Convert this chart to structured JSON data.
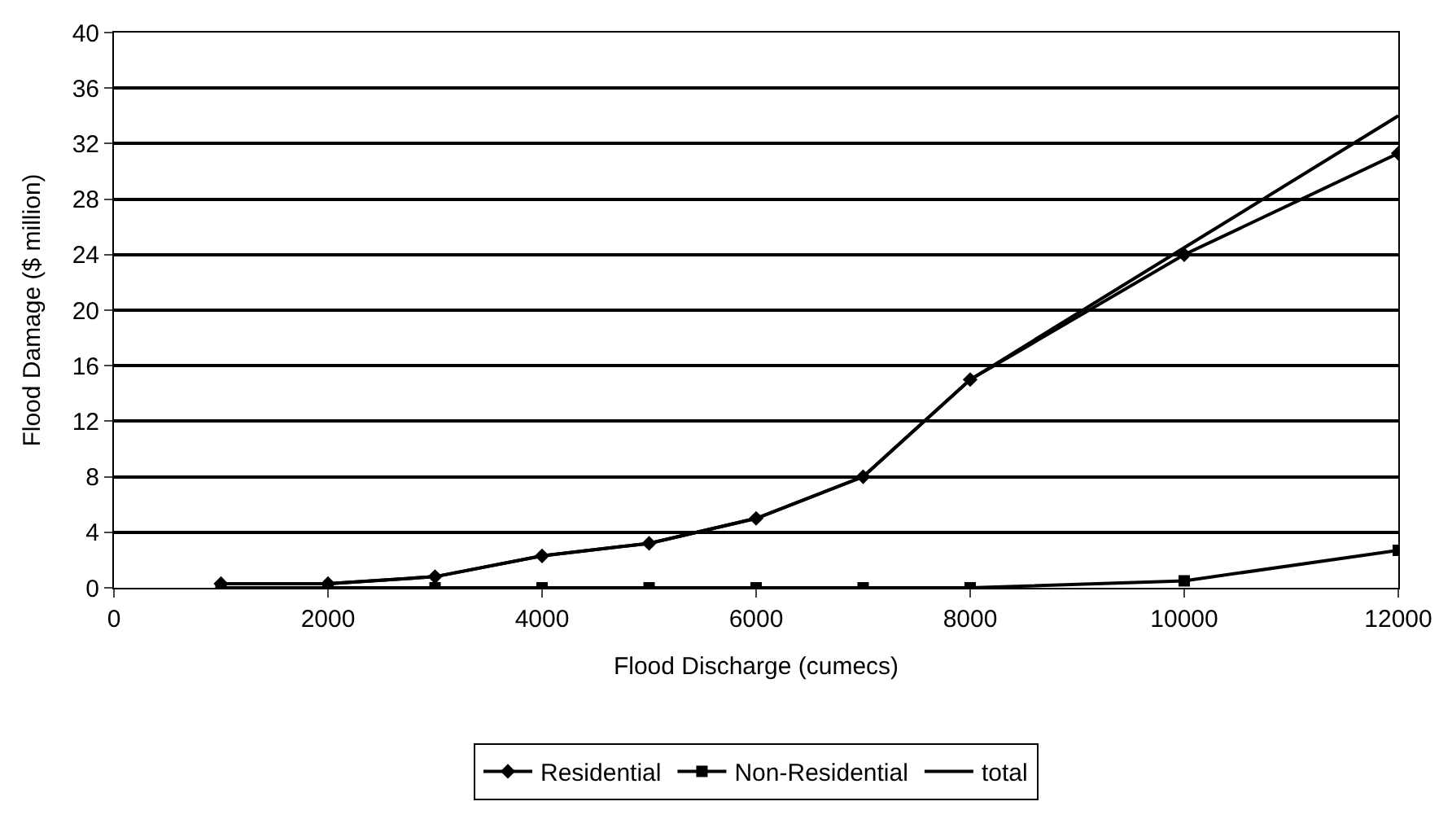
{
  "chart_data": {
    "type": "line",
    "xlabel": "Flood Discharge (cumecs)",
    "ylabel": "Flood Damage ($ million)",
    "x": [
      1000,
      2000,
      3000,
      4000,
      5000,
      6000,
      7000,
      8000,
      10000,
      12000
    ],
    "series": [
      {
        "name": "Residential",
        "color": "#000000",
        "marker": "diamond",
        "values": [
          0.3,
          0.3,
          0.8,
          2.3,
          3.2,
          5,
          8,
          15,
          24,
          31.3
        ]
      },
      {
        "name": "Non-Residential",
        "color": "#000000",
        "marker": "square",
        "values": [
          0,
          0,
          0,
          0,
          0,
          0,
          0,
          0,
          0.5,
          2.7
        ]
      },
      {
        "name": "total",
        "color": "#000000",
        "marker": "none",
        "values": [
          0.3,
          0.3,
          0.8,
          2.3,
          3.2,
          5,
          8,
          15,
          24.5,
          34
        ]
      }
    ],
    "xlim": [
      0,
      12000
    ],
    "xticks": [
      0,
      2000,
      4000,
      6000,
      8000,
      10000,
      12000
    ],
    "ylim": [
      0,
      40
    ],
    "yticks": [
      0,
      4,
      8,
      12,
      16,
      20,
      24,
      28,
      32,
      36,
      40
    ],
    "grid": "y",
    "legend": "bottom",
    "line_style": "solid"
  }
}
